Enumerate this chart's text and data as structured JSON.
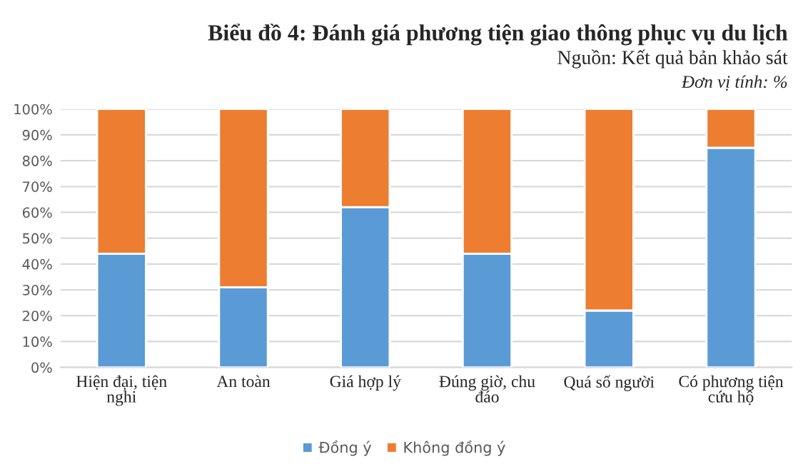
{
  "chart_data": {
    "type": "bar",
    "stacked": true,
    "title": "Biểu đồ 4: Đánh giá phương tiện giao thông phục vụ du lịch",
    "annotations": [
      "Nguồn: Kết quả bản khảo sát",
      "Đơn vị tính: %"
    ],
    "categories": [
      "Hiện đại, tiện\nnghi",
      "An toàn",
      "Giá hợp lý",
      "Đúng giờ, chu\nđáo",
      "Quá số người",
      "Có phương tiện\ncứu hộ"
    ],
    "series": [
      {
        "name": "Đồng ý",
        "color": "#5b9bd5",
        "values": [
          44,
          31,
          62,
          44,
          22,
          85
        ]
      },
      {
        "name": "Không đồng ý",
        "color": "#ed7d31",
        "values": [
          56,
          69,
          38,
          56,
          78,
          15
        ]
      }
    ],
    "ylim": [
      0,
      100
    ],
    "yticks": [
      {
        "value": 0,
        "label": "0%"
      },
      {
        "value": 10,
        "label": "10%"
      },
      {
        "value": 20,
        "label": "20%"
      },
      {
        "value": 30,
        "label": "30%"
      },
      {
        "value": 40,
        "label": "40%"
      },
      {
        "value": 50,
        "label": "50%"
      },
      {
        "value": 60,
        "label": "60%"
      },
      {
        "value": 70,
        "label": "70%"
      },
      {
        "value": 80,
        "label": "80%"
      },
      {
        "value": 90,
        "label": "90%"
      },
      {
        "value": 100,
        "label": "100%"
      }
    ],
    "grid": "y",
    "legend": "bottom"
  }
}
